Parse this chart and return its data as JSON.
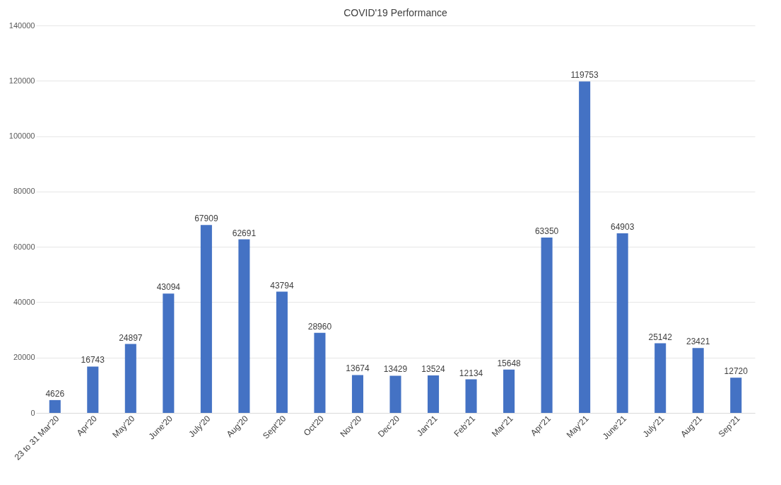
{
  "chart_data": {
    "type": "bar",
    "title": "COVID'19 Performance",
    "categories": [
      "23 to 31 Mar'20",
      "Apr'20",
      "May'20",
      "June'20",
      "July'20",
      "Aug'20",
      "Sept'20",
      "Oct'20",
      "Nov'20",
      "Dec'20",
      "Jan'21",
      "Feb'21",
      "Mar'21",
      "Apr'21",
      "May'21",
      "June'21",
      "July'21",
      "Aug'21",
      "Sep'21"
    ],
    "values": [
      4626,
      16743,
      24897,
      43094,
      67909,
      62691,
      43794,
      28960,
      13674,
      13429,
      13524,
      12134,
      15648,
      63350,
      119753,
      64903,
      25142,
      23421,
      12720
    ],
    "color": "#4472c4",
    "ylim": [
      0,
      140000
    ],
    "yticks": [
      0,
      20000,
      40000,
      60000,
      80000,
      100000,
      120000,
      140000
    ],
    "grid": "y",
    "data_labels": true
  }
}
